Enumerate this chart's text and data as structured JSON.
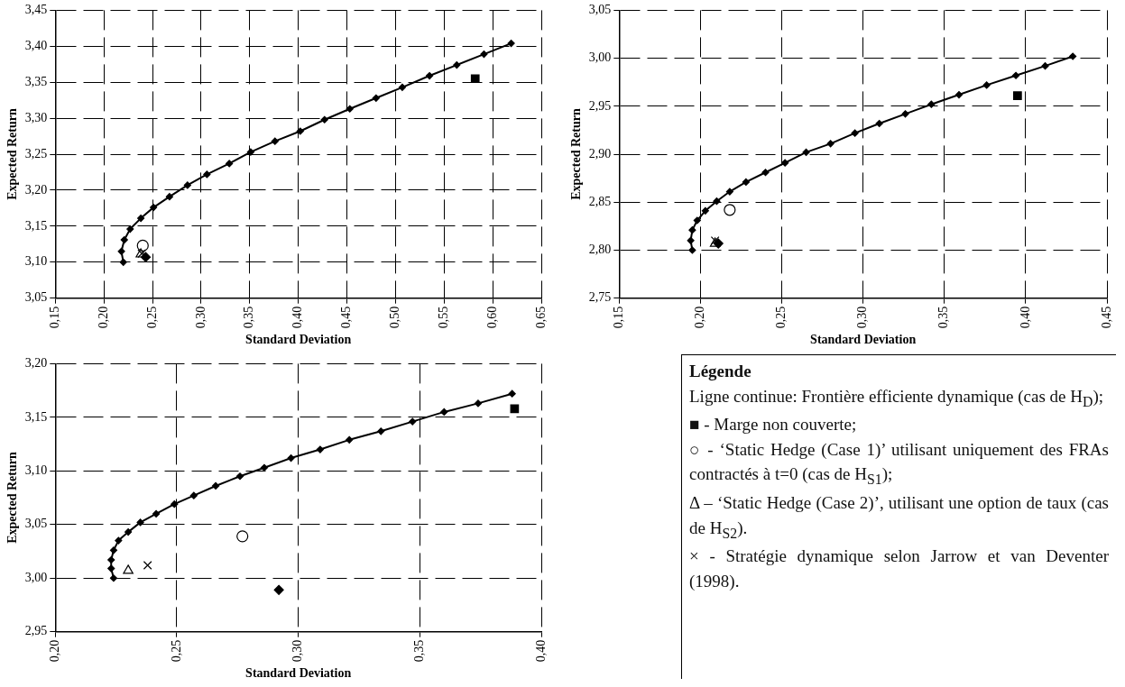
{
  "chart_data": [
    {
      "type": "scatter",
      "xlabel": "Standard Deviation",
      "ylabel": "Expected Return",
      "grid": true,
      "xlim": [
        0.15,
        0.65
      ],
      "ylim": [
        3.05,
        3.45
      ],
      "xticks": [
        {
          "value": 0.15,
          "label": "0,15"
        },
        {
          "value": 0.2,
          "label": "0,20"
        },
        {
          "value": 0.25,
          "label": "0,25"
        },
        {
          "value": 0.3,
          "label": "0,30"
        },
        {
          "value": 0.35,
          "label": "0,35"
        },
        {
          "value": 0.4,
          "label": "0,40"
        },
        {
          "value": 0.45,
          "label": "0,45"
        },
        {
          "value": 0.5,
          "label": "0,50"
        },
        {
          "value": 0.55,
          "label": "0,55"
        },
        {
          "value": 0.6,
          "label": "0,60"
        },
        {
          "value": 0.65,
          "label": "0,65"
        }
      ],
      "yticks": [
        {
          "value": 3.05,
          "label": "3,05"
        },
        {
          "value": 3.1,
          "label": "3,10"
        },
        {
          "value": 3.15,
          "label": "3,15"
        },
        {
          "value": 3.2,
          "label": "3,20"
        },
        {
          "value": 3.25,
          "label": "3,25"
        },
        {
          "value": 3.3,
          "label": "3,30"
        },
        {
          "value": 3.35,
          "label": "3,35"
        },
        {
          "value": 3.4,
          "label": "3,40"
        },
        {
          "value": 3.45,
          "label": "3,45"
        }
      ],
      "series": [
        {
          "type": "line",
          "color": "#000000",
          "marker": "diamond",
          "x": [
            0.22,
            0.218,
            0.221,
            0.227,
            0.238,
            0.251,
            0.2675,
            0.286,
            0.306,
            0.329,
            0.351,
            0.376,
            0.402,
            0.427,
            0.453,
            0.48,
            0.507,
            0.535,
            0.563,
            0.591,
            0.619
          ],
          "values": [
            3.1,
            3.115,
            3.131,
            3.146,
            3.161,
            3.176,
            3.191,
            3.207,
            3.222,
            3.237,
            3.253,
            3.268,
            3.282,
            3.298,
            3.313,
            3.328,
            3.343,
            3.359,
            3.374,
            3.389,
            3.404
          ]
        },
        {
          "type": "scatter",
          "color": "#000000",
          "marker": "square",
          "x": [
            0.582
          ],
          "values": [
            3.355
          ]
        },
        {
          "type": "scatter",
          "color": "#000000",
          "marker": "circle",
          "x": [
            0.24
          ],
          "values": [
            3.123
          ]
        },
        {
          "type": "scatter",
          "color": "#000000",
          "marker": "triangle",
          "x": [
            0.238
          ],
          "values": [
            3.111
          ]
        },
        {
          "type": "scatter",
          "color": "#000000",
          "marker": "cross",
          "x": [
            0.239
          ],
          "values": [
            3.112
          ]
        },
        {
          "type": "scatter",
          "color": "#000000",
          "marker": "diamond",
          "x": [
            0.243
          ],
          "values": [
            3.107
          ]
        }
      ]
    },
    {
      "type": "scatter",
      "xlabel": "Standard Deviation",
      "ylabel": "Expected Return",
      "grid": true,
      "xlim": [
        0.15,
        0.45
      ],
      "ylim": [
        2.75,
        3.05
      ],
      "xticks": [
        {
          "value": 0.15,
          "label": "0,15"
        },
        {
          "value": 0.2,
          "label": "0,20"
        },
        {
          "value": 0.25,
          "label": "0,25"
        },
        {
          "value": 0.3,
          "label": "0,30"
        },
        {
          "value": 0.35,
          "label": "0,35"
        },
        {
          "value": 0.4,
          "label": "0,40"
        },
        {
          "value": 0.45,
          "label": "0,45"
        }
      ],
      "yticks": [
        {
          "value": 2.75,
          "label": "2,75"
        },
        {
          "value": 2.8,
          "label": "2,80"
        },
        {
          "value": 2.85,
          "label": "2,85"
        },
        {
          "value": 2.9,
          "label": "2,90"
        },
        {
          "value": 2.95,
          "label": "2,95"
        },
        {
          "value": 3.0,
          "label": "3,00"
        },
        {
          "value": 3.05,
          "label": "3,05"
        }
      ],
      "series": [
        {
          "type": "line",
          "color": "#000000",
          "marker": "diamond",
          "x": [
            0.195,
            0.194,
            0.195,
            0.198,
            0.203,
            0.21,
            0.218,
            0.228,
            0.24,
            0.252,
            0.265,
            0.28,
            0.295,
            0.31,
            0.326,
            0.342,
            0.359,
            0.376,
            0.394,
            0.412,
            0.429
          ],
          "values": [
            2.8,
            2.81,
            2.821,
            2.831,
            2.841,
            2.851,
            2.861,
            2.871,
            2.881,
            2.891,
            2.902,
            2.911,
            2.922,
            2.932,
            2.942,
            2.952,
            2.962,
            2.972,
            2.982,
            2.992,
            3.002
          ]
        },
        {
          "type": "scatter",
          "color": "#000000",
          "marker": "square",
          "x": [
            0.395
          ],
          "values": [
            2.961
          ]
        },
        {
          "type": "scatter",
          "color": "#000000",
          "marker": "circle",
          "x": [
            0.218
          ],
          "values": [
            2.842
          ]
        },
        {
          "type": "scatter",
          "color": "#000000",
          "marker": "triangle",
          "x": [
            0.209
          ],
          "values": [
            2.807
          ]
        },
        {
          "type": "scatter",
          "color": "#000000",
          "marker": "cross",
          "x": [
            0.209
          ],
          "values": [
            2.81
          ]
        },
        {
          "type": "scatter",
          "color": "#000000",
          "marker": "diamond",
          "x": [
            0.211
          ],
          "values": [
            2.807
          ]
        }
      ]
    },
    {
      "type": "scatter",
      "xlabel": "Standard Deviation",
      "ylabel": "Expected Return",
      "grid": true,
      "xlim": [
        0.2,
        0.4
      ],
      "ylim": [
        2.95,
        3.2
      ],
      "xticks": [
        {
          "value": 0.2,
          "label": "0,20"
        },
        {
          "value": 0.25,
          "label": "0,25"
        },
        {
          "value": 0.3,
          "label": "0,30"
        },
        {
          "value": 0.35,
          "label": "0,35"
        },
        {
          "value": 0.4,
          "label": "0,40"
        }
      ],
      "yticks": [
        {
          "value": 2.95,
          "label": "2,95"
        },
        {
          "value": 3.0,
          "label": "3,00"
        },
        {
          "value": 3.05,
          "label": "3,05"
        },
        {
          "value": 3.1,
          "label": "3,10"
        },
        {
          "value": 3.15,
          "label": "3,15"
        },
        {
          "value": 3.2,
          "label": "3,20"
        }
      ],
      "series": [
        {
          "type": "line",
          "color": "#000000",
          "marker": "diamond",
          "x": [
            0.224,
            0.223,
            0.223,
            0.224,
            0.226,
            0.23,
            0.235,
            0.2415,
            0.249,
            0.257,
            0.266,
            0.276,
            0.286,
            0.297,
            0.309,
            0.321,
            0.334,
            0.347,
            0.36,
            0.374,
            0.388
          ],
          "values": [
            3.0,
            3.009,
            3.017,
            3.026,
            3.035,
            3.043,
            3.052,
            3.06,
            3.069,
            3.077,
            3.086,
            3.095,
            3.103,
            3.112,
            3.12,
            3.129,
            3.137,
            3.146,
            3.155,
            3.163,
            3.172
          ]
        },
        {
          "type": "scatter",
          "color": "#000000",
          "marker": "square",
          "x": [
            0.389
          ],
          "values": [
            3.158
          ]
        },
        {
          "type": "scatter",
          "color": "#000000",
          "marker": "circle",
          "x": [
            0.277
          ],
          "values": [
            3.039
          ]
        },
        {
          "type": "scatter",
          "color": "#000000",
          "marker": "triangle",
          "x": [
            0.23
          ],
          "values": [
            3.007
          ]
        },
        {
          "type": "scatter",
          "color": "#000000",
          "marker": "cross",
          "x": [
            0.238
          ],
          "values": [
            3.012
          ]
        },
        {
          "type": "scatter",
          "color": "#000000",
          "marker": "diamond",
          "x": [
            0.292
          ],
          "values": [
            2.989
          ]
        }
      ]
    },
    {
      "type": "other",
      "title": "Légende",
      "annotations": [
        "Ligne continue: Frontière efficiente dynamique (cas de H$_{D}$);",
        "■ - Marge non couverte;",
        "○ - ‘Static Hedge (Case 1)’ utilisant uniquement des FRAs contractés à t=0 (cas de H$_{S1}$);",
        "Δ – ‘Static Hedge (Case 2)’, utilisant une option de taux (cas de H$_{S2}$).",
        "× - Stratégie dynamique selon Jarrow et van Deventer (1998)."
      ]
    }
  ]
}
